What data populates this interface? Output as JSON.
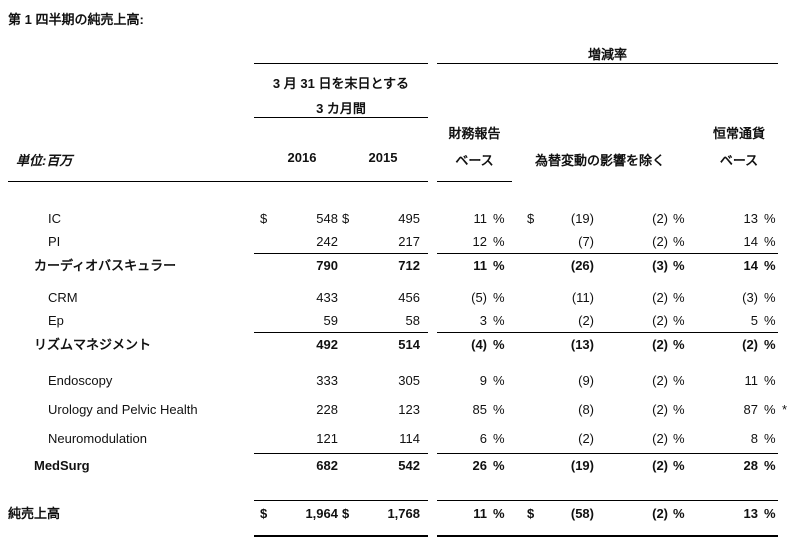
{
  "page": {
    "title": "第 1 四半期の純売上高:"
  },
  "colors": {
    "text": "#111111",
    "rule": "#000000",
    "background": "#ffffff"
  },
  "table": {
    "unit_label": "単位:百万",
    "period_group": {
      "line1": "3 月 31 日を末日とする",
      "line2": "3 カ月間",
      "col_2016": "2016",
      "col_2015": "2015"
    },
    "change_group": {
      "title": "増減率",
      "reported_line1": "財務報告",
      "reported_line2": "ベース",
      "fx_excluded": "為替変動の影響を除く",
      "constant_line1": "恒常通貨",
      "constant_line2": "ベース"
    },
    "rows": [
      {
        "label": "IC",
        "style": "item",
        "spacing": "normal",
        "gap_before": false,
        "rule_before": false,
        "rule_after": false,
        "thick_rule_after": false,
        "mt7": false,
        "usd_2016": "$",
        "v2016": "548",
        "usd_2015": "$",
        "v2015": "495",
        "reported_pct": "11",
        "reported_pct_sign": "%",
        "usd_fx": "$",
        "fx_amount": "(19)",
        "fx_pct": "(2)",
        "fx_pct_sign": "%",
        "constant_pct": "13",
        "constant_pct_sign": "%",
        "note": ""
      },
      {
        "label": "PI",
        "style": "item",
        "spacing": "normal",
        "gap_before": false,
        "rule_before": false,
        "rule_after": true,
        "thick_rule_after": false,
        "mt7": false,
        "usd_2016": "",
        "v2016": "242",
        "usd_2015": "",
        "v2015": "217",
        "reported_pct": "12",
        "reported_pct_sign": "%",
        "usd_fx": "",
        "fx_amount": "(7)",
        "fx_pct": "(2)",
        "fx_pct_sign": "%",
        "constant_pct": "14",
        "constant_pct_sign": "%",
        "note": ""
      },
      {
        "label": "カーディオバスキュラー",
        "style": "subtotal",
        "spacing": "normal",
        "gap_before": false,
        "rule_before": false,
        "rule_after": false,
        "thick_rule_after": false,
        "mt7": false,
        "usd_2016": "",
        "v2016": "790",
        "usd_2015": "",
        "v2015": "712",
        "reported_pct": "11",
        "reported_pct_sign": "%",
        "usd_fx": "",
        "fx_amount": "(26)",
        "fx_pct": "(3)",
        "fx_pct_sign": "%",
        "constant_pct": "14",
        "constant_pct_sign": "%",
        "note": ""
      },
      {
        "label": "CRM",
        "style": "item",
        "spacing": "normal",
        "gap_before": false,
        "rule_before": false,
        "rule_after": false,
        "thick_rule_after": false,
        "mt7": true,
        "usd_2016": "",
        "v2016": "433",
        "usd_2015": "",
        "v2015": "456",
        "reported_pct": "(5)",
        "reported_pct_sign": "%",
        "usd_fx": "",
        "fx_amount": "(11)",
        "fx_pct": "(2)",
        "fx_pct_sign": "%",
        "constant_pct": "(3)",
        "constant_pct_sign": "%",
        "note": ""
      },
      {
        "label": "Ep",
        "style": "item",
        "spacing": "normal",
        "gap_before": false,
        "rule_before": false,
        "rule_after": true,
        "thick_rule_after": false,
        "mt7": false,
        "usd_2016": "",
        "v2016": "59",
        "usd_2015": "",
        "v2015": "58",
        "reported_pct": "3",
        "reported_pct_sign": "%",
        "usd_fx": "",
        "fx_amount": "(2)",
        "fx_pct": "(2)",
        "fx_pct_sign": "%",
        "constant_pct": "5",
        "constant_pct_sign": "%",
        "note": ""
      },
      {
        "label": "リズムマネジメント",
        "style": "subtotal",
        "spacing": "normal",
        "gap_before": false,
        "rule_before": false,
        "rule_after": false,
        "thick_rule_after": false,
        "mt7": false,
        "usd_2016": "",
        "v2016": "492",
        "usd_2015": "",
        "v2015": "514",
        "reported_pct": "(4)",
        "reported_pct_sign": "%",
        "usd_fx": "",
        "fx_amount": "(13)",
        "fx_pct": "(2)",
        "fx_pct_sign": "%",
        "constant_pct": "(2)",
        "constant_pct_sign": "%",
        "note": ""
      },
      {
        "label": "Endoscopy",
        "style": "item",
        "spacing": "wide",
        "gap_before": true,
        "rule_before": false,
        "rule_after": false,
        "thick_rule_after": false,
        "mt7": false,
        "usd_2016": "",
        "v2016": "333",
        "usd_2015": "",
        "v2015": "305",
        "reported_pct": "9",
        "reported_pct_sign": "%",
        "usd_fx": "",
        "fx_amount": "(9)",
        "fx_pct": "(2)",
        "fx_pct_sign": "%",
        "constant_pct": "11",
        "constant_pct_sign": "%",
        "note": ""
      },
      {
        "label": "Urology and Pelvic Health",
        "style": "item",
        "spacing": "wide",
        "gap_before": false,
        "rule_before": false,
        "rule_after": false,
        "thick_rule_after": false,
        "mt7": false,
        "usd_2016": "",
        "v2016": "228",
        "usd_2015": "",
        "v2015": "123",
        "reported_pct": "85",
        "reported_pct_sign": "%",
        "usd_fx": "",
        "fx_amount": "(8)",
        "fx_pct": "(2)",
        "fx_pct_sign": "%",
        "constant_pct": "87",
        "constant_pct_sign": "%",
        "note": "*"
      },
      {
        "label": "Neuromodulation",
        "style": "item",
        "spacing": "wide",
        "gap_before": false,
        "rule_before": false,
        "rule_after": true,
        "thick_rule_after": false,
        "mt7": false,
        "usd_2016": "",
        "v2016": "121",
        "usd_2015": "",
        "v2015": "114",
        "reported_pct": "6",
        "reported_pct_sign": "%",
        "usd_fx": "",
        "fx_amount": "(2)",
        "fx_pct": "(2)",
        "fx_pct_sign": "%",
        "constant_pct": "8",
        "constant_pct_sign": "%",
        "note": ""
      },
      {
        "label": "MedSurg",
        "style": "subtotal",
        "spacing": "normal",
        "gap_before": false,
        "rule_before": false,
        "rule_after": false,
        "thick_rule_after": false,
        "mt7": false,
        "usd_2016": "",
        "v2016": "682",
        "usd_2015": "",
        "v2015": "542",
        "reported_pct": "26",
        "reported_pct_sign": "%",
        "usd_fx": "",
        "fx_amount": "(19)",
        "fx_pct": "(2)",
        "fx_pct_sign": "%",
        "constant_pct": "28",
        "constant_pct_sign": "%",
        "note": ""
      },
      {
        "label": "純売上高",
        "style": "total",
        "spacing": "normal",
        "gap_before": false,
        "rule_before": true,
        "rule_after": false,
        "thick_rule_after": true,
        "mt7": false,
        "usd_2016": "$",
        "v2016": "1,964",
        "usd_2015": "$",
        "v2015": "1,768",
        "reported_pct": "11",
        "reported_pct_sign": "%",
        "usd_fx": "$",
        "fx_amount": "(58)",
        "fx_pct": "(2)",
        "fx_pct_sign": "%",
        "constant_pct": "13",
        "constant_pct_sign": "%",
        "note": ""
      }
    ]
  }
}
